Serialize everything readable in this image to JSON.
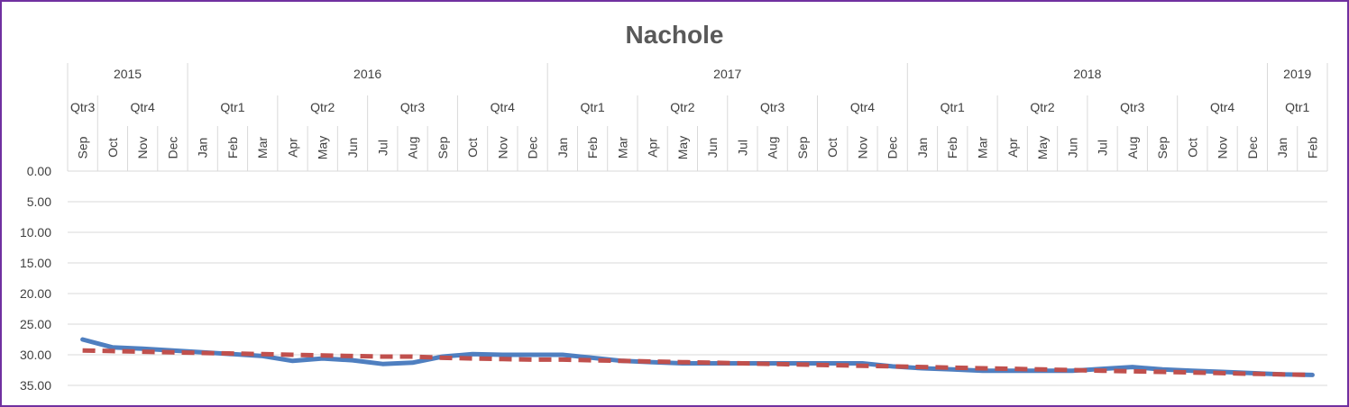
{
  "chart_data": {
    "type": "line",
    "title": "Nachole",
    "xlabel": "",
    "ylabel": "",
    "ylim": [
      0,
      35
    ],
    "y_inverted": true,
    "y_ticks": [
      "0.00",
      "5.00",
      "10.00",
      "15.00",
      "20.00",
      "25.00",
      "30.00",
      "35.00"
    ],
    "grid": true,
    "x_axis_position": "top",
    "months": [
      "Sep",
      "Oct",
      "Nov",
      "Dec",
      "Jan",
      "Feb",
      "Mar",
      "Apr",
      "May",
      "Jun",
      "Jul",
      "Aug",
      "Sep",
      "Oct",
      "Nov",
      "Dec",
      "Jan",
      "Feb",
      "Mar",
      "Apr",
      "May",
      "Jun",
      "Jul",
      "Aug",
      "Sep",
      "Oct",
      "Nov",
      "Dec",
      "Jan",
      "Feb",
      "Mar",
      "Apr",
      "May",
      "Jun",
      "Jul",
      "Aug",
      "Sep",
      "Oct",
      "Nov",
      "Dec",
      "Jan",
      "Feb"
    ],
    "quarters": [
      {
        "label": "Qtr3",
        "span": 1
      },
      {
        "label": "Qtr4",
        "span": 3
      },
      {
        "label": "Qtr1",
        "span": 3
      },
      {
        "label": "Qtr2",
        "span": 3
      },
      {
        "label": "Qtr3",
        "span": 3
      },
      {
        "label": "Qtr4",
        "span": 3
      },
      {
        "label": "Qtr1",
        "span": 3
      },
      {
        "label": "Qtr2",
        "span": 3
      },
      {
        "label": "Qtr3",
        "span": 3
      },
      {
        "label": "Qtr4",
        "span": 3
      },
      {
        "label": "Qtr1",
        "span": 3
      },
      {
        "label": "Qtr2",
        "span": 3
      },
      {
        "label": "Qtr3",
        "span": 3
      },
      {
        "label": "Qtr4",
        "span": 3
      },
      {
        "label": "Qtr1",
        "span": 2
      }
    ],
    "years": [
      {
        "label": "2015",
        "span": 4
      },
      {
        "label": "2016",
        "span": 12
      },
      {
        "label": "2017",
        "span": 12
      },
      {
        "label": "2018",
        "span": 12
      },
      {
        "label": "2019",
        "span": 2
      }
    ],
    "series": [
      {
        "color": "#4f7fc0",
        "style": "solid",
        "values": [
          27.5,
          28.8,
          29.0,
          29.3,
          29.6,
          29.9,
          30.2,
          31.0,
          30.6,
          30.9,
          31.5,
          31.3,
          30.3,
          29.9,
          30.0,
          30.0,
          30.0,
          30.5,
          31.0,
          31.2,
          31.4,
          31.4,
          31.4,
          31.4,
          31.4,
          31.4,
          31.4,
          31.9,
          32.2,
          32.4,
          32.6,
          32.6,
          32.6,
          32.6,
          32.3,
          32.0,
          32.4,
          32.6,
          32.8,
          33.0,
          33.2,
          33.3
        ]
      },
      {
        "color": "#c0504d",
        "style": "dashed",
        "values": [
          29.3,
          29.4,
          29.5,
          29.6,
          29.7,
          29.8,
          29.9,
          30.0,
          30.1,
          30.2,
          30.3,
          30.3,
          30.5,
          30.6,
          30.7,
          30.8,
          30.8,
          30.9,
          31.0,
          31.1,
          31.2,
          31.3,
          31.4,
          31.5,
          31.6,
          31.7,
          31.8,
          31.9,
          32.0,
          32.1,
          32.2,
          32.3,
          32.4,
          32.5,
          32.6,
          32.7,
          32.8,
          32.9,
          33.0,
          33.1,
          33.2,
          33.3
        ]
      }
    ]
  }
}
